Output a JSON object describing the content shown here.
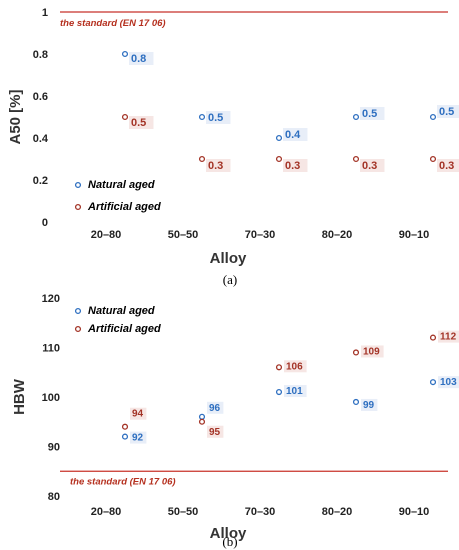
{
  "chart_data": [
    {
      "type": "scatter",
      "panel_label": "(a)",
      "ylabel": "A50 [%]",
      "xlabel": "Alloy",
      "categories": [
        "20–80",
        "50–50",
        "70–30",
        "80–20",
        "90–10"
      ],
      "yticks": [
        0,
        0.2,
        0.4,
        0.6,
        0.8,
        1
      ],
      "ylim": [
        0,
        1
      ],
      "standard": {
        "value": 1,
        "label": "the standard (EN 17 06)"
      },
      "series": [
        {
          "name": "Natural aged",
          "color": "#2e6fc0",
          "values": [
            0.8,
            0.5,
            0.4,
            0.5,
            0.5
          ],
          "labels": [
            "0.8",
            "0.5",
            "0.4",
            "0.5",
            "0.5"
          ]
        },
        {
          "name": "Artificial aged",
          "color": "#a33326",
          "values": [
            0.5,
            0.3,
            0.3,
            0.3,
            0.3
          ],
          "labels": [
            "0.5",
            "0.3",
            "0.3",
            "0.3",
            "0.3"
          ]
        }
      ],
      "legend_position": "bottom-left",
      "grid": false
    },
    {
      "type": "scatter",
      "panel_label": "(b)",
      "ylabel": "HBW",
      "xlabel": "Alloy",
      "categories": [
        "20–80",
        "50–50",
        "70–30",
        "80–20",
        "90–10"
      ],
      "yticks": [
        80,
        90,
        100,
        110,
        120
      ],
      "ylim": [
        80,
        120
      ],
      "standard": {
        "value": 85,
        "label": "the standard (EN 17 06)"
      },
      "series": [
        {
          "name": "Natural aged",
          "color": "#2e6fc0",
          "values": [
            92,
            96,
            101,
            99,
            103
          ],
          "labels": [
            "92",
            "96",
            "101",
            "99",
            "103"
          ]
        },
        {
          "name": "Artificial aged",
          "color": "#a33326",
          "values": [
            94,
            95,
            106,
            109,
            112
          ],
          "labels": [
            "94",
            "95",
            "106",
            "109",
            "112"
          ]
        }
      ],
      "legend_position": "top-left",
      "grid": false
    }
  ]
}
